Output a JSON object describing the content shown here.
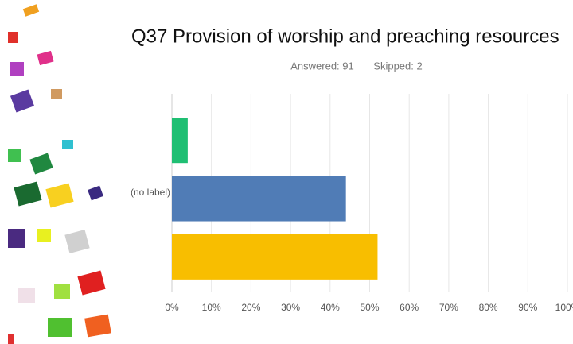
{
  "chart_data": {
    "type": "hbar",
    "title": "Q37 Provision of worship and preaching resources",
    "answered": "Answered: 91",
    "skipped": "Skipped: 2",
    "categories": [
      "(no label)"
    ],
    "series": [
      {
        "color": "#1fbf73",
        "values": [
          4
        ]
      },
      {
        "color": "#507cb6",
        "values": [
          44
        ]
      },
      {
        "color": "#f8be00",
        "values": [
          52
        ]
      }
    ],
    "xlim": [
      0,
      100
    ],
    "xticks": [
      {
        "value": 0,
        "label": "0%"
      },
      {
        "value": 10,
        "label": "10%"
      },
      {
        "value": 20,
        "label": "20%"
      },
      {
        "value": 30,
        "label": "30%"
      },
      {
        "value": 40,
        "label": "40%"
      },
      {
        "value": 50,
        "label": "50%"
      },
      {
        "value": 60,
        "label": "60%"
      },
      {
        "value": 70,
        "label": "70%"
      },
      {
        "value": 80,
        "label": "80%"
      },
      {
        "value": 90,
        "label": "90%"
      },
      {
        "value": 100,
        "label": "100%"
      }
    ],
    "grid": true
  }
}
